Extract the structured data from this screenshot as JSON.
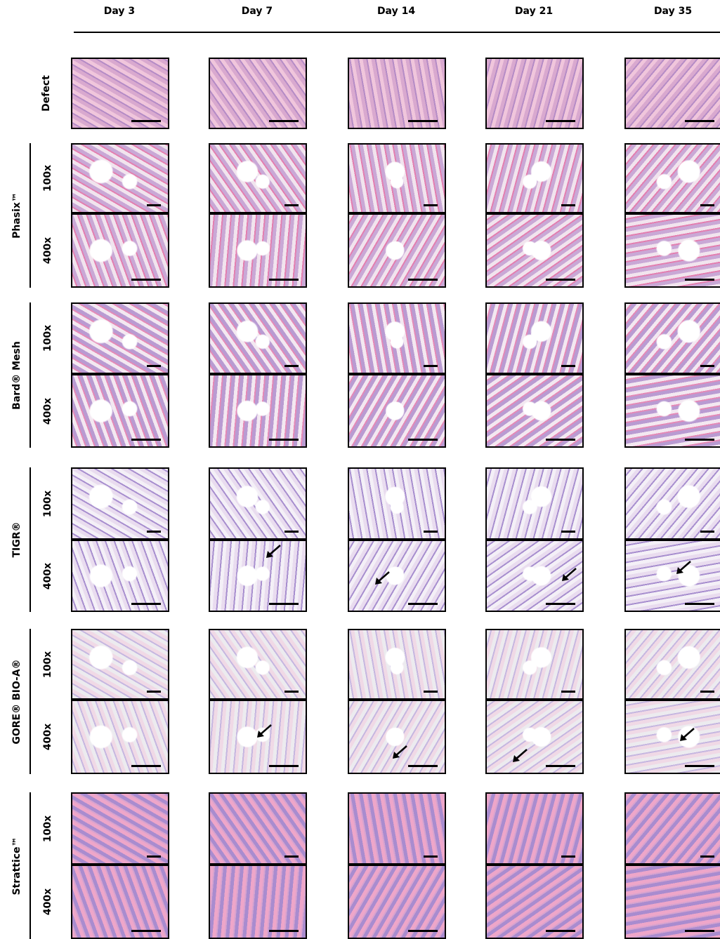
{
  "columns": [
    "Day 3",
    "Day 7",
    "Day 14",
    "Day 21",
    "Day 35"
  ],
  "groups": [
    {
      "label": "Defect"
    },
    {
      "label": "Phasix™",
      "magnifications": [
        "100x",
        "400x"
      ]
    },
    {
      "label": "Bard® Mesh",
      "magnifications": [
        "100x",
        "400x"
      ]
    },
    {
      "label": "TIGR®",
      "magnifications": [
        "100x",
        "400x"
      ]
    },
    {
      "label": "GORE® BIO-A®",
      "magnifications": [
        "100x",
        "400x"
      ]
    },
    {
      "label": "Strattice™",
      "magnifications": [
        "100x",
        "400x"
      ]
    }
  ]
}
